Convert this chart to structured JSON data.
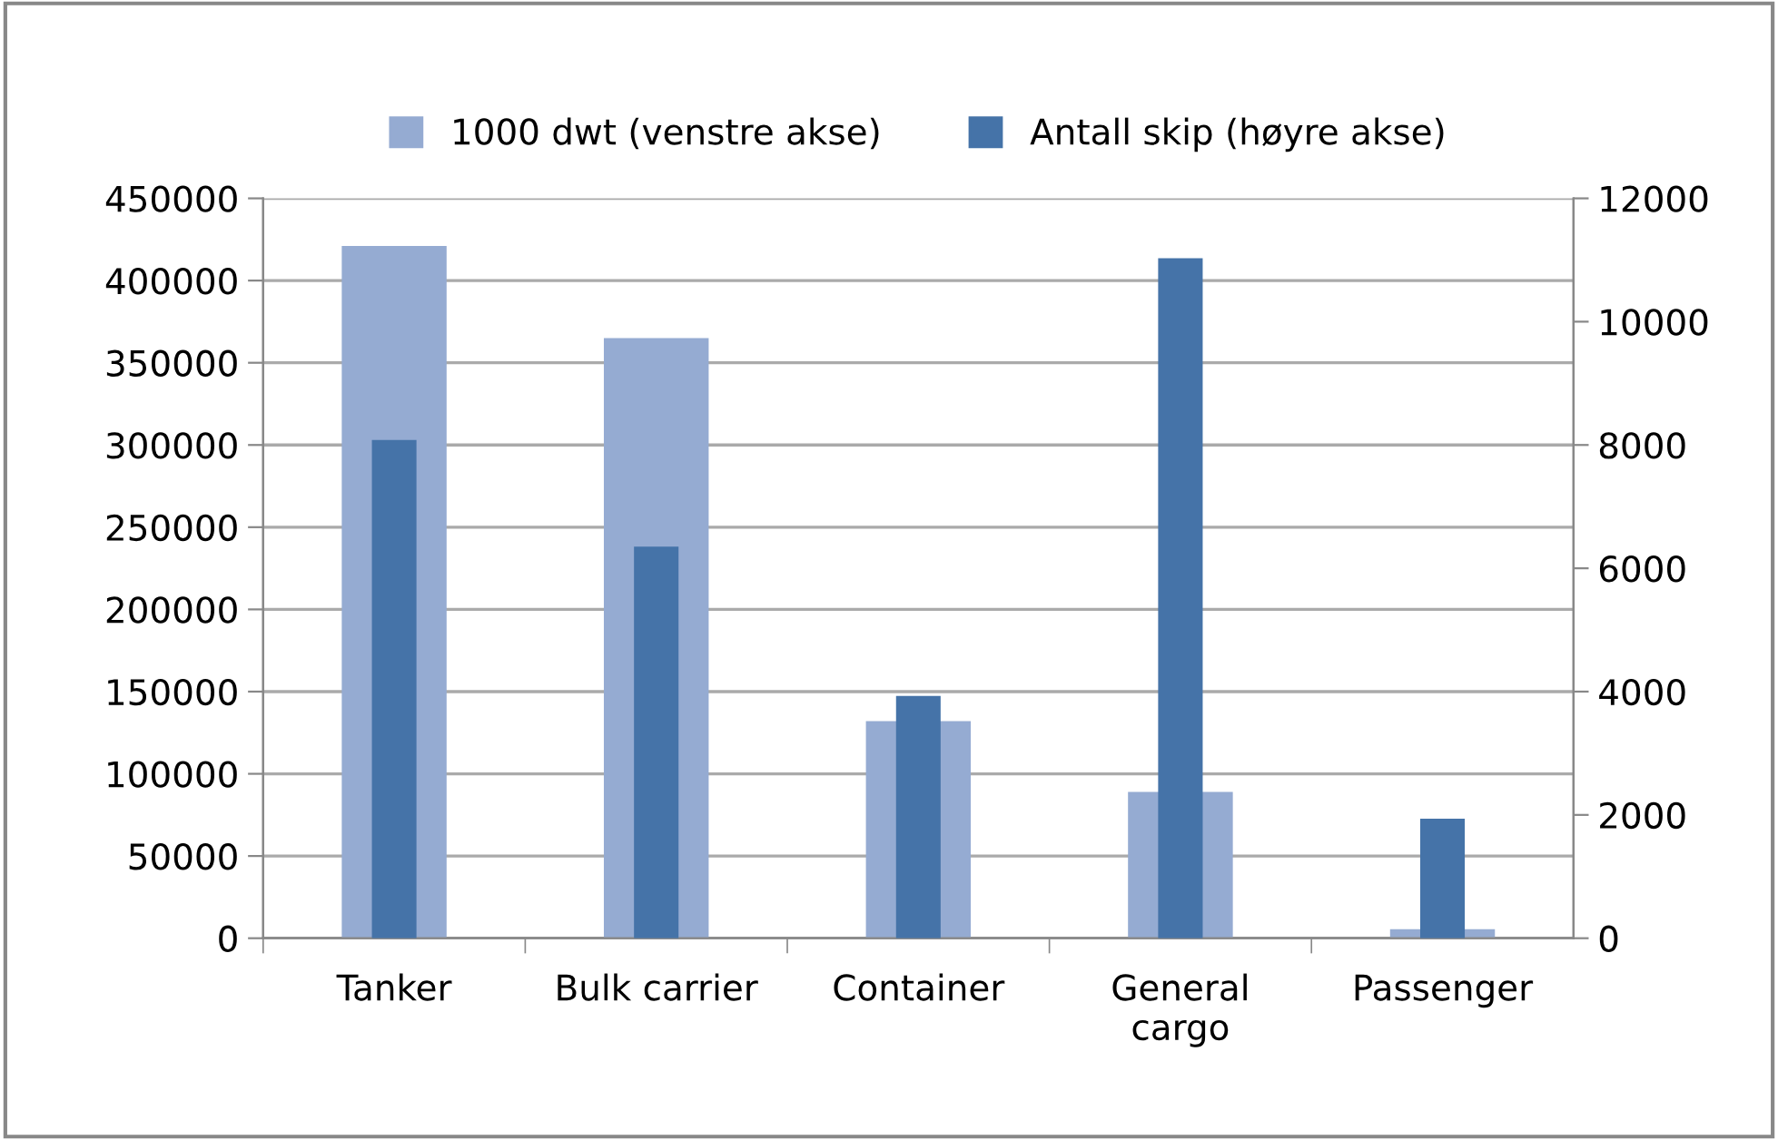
{
  "chart_data": {
    "type": "bar",
    "categories": [
      "Tanker",
      "Bulk carrier",
      "Container",
      "General\ncargo",
      "Passenger"
    ],
    "series": [
      {
        "name": "1000 dwt (venstre akse)",
        "color": "#95abd2",
        "values": [
          421000,
          365000,
          132000,
          89000,
          5500
        ]
      },
      {
        "name": "Antall skip (høyre akse)",
        "color": "#4573a8",
        "values": [
          8080,
          6350,
          3930,
          11030,
          1940
        ],
        "axis": "y2"
      }
    ],
    "ylim": [
      0,
      450000
    ],
    "yticks": [
      0,
      50000,
      100000,
      150000,
      200000,
      250000,
      300000,
      350000,
      400000,
      450000
    ],
    "y2lim": [
      0,
      12000
    ],
    "y2ticks": [
      0,
      2000,
      4000,
      6000,
      8000,
      10000,
      12000
    ],
    "grid": "y",
    "legend": "top"
  }
}
